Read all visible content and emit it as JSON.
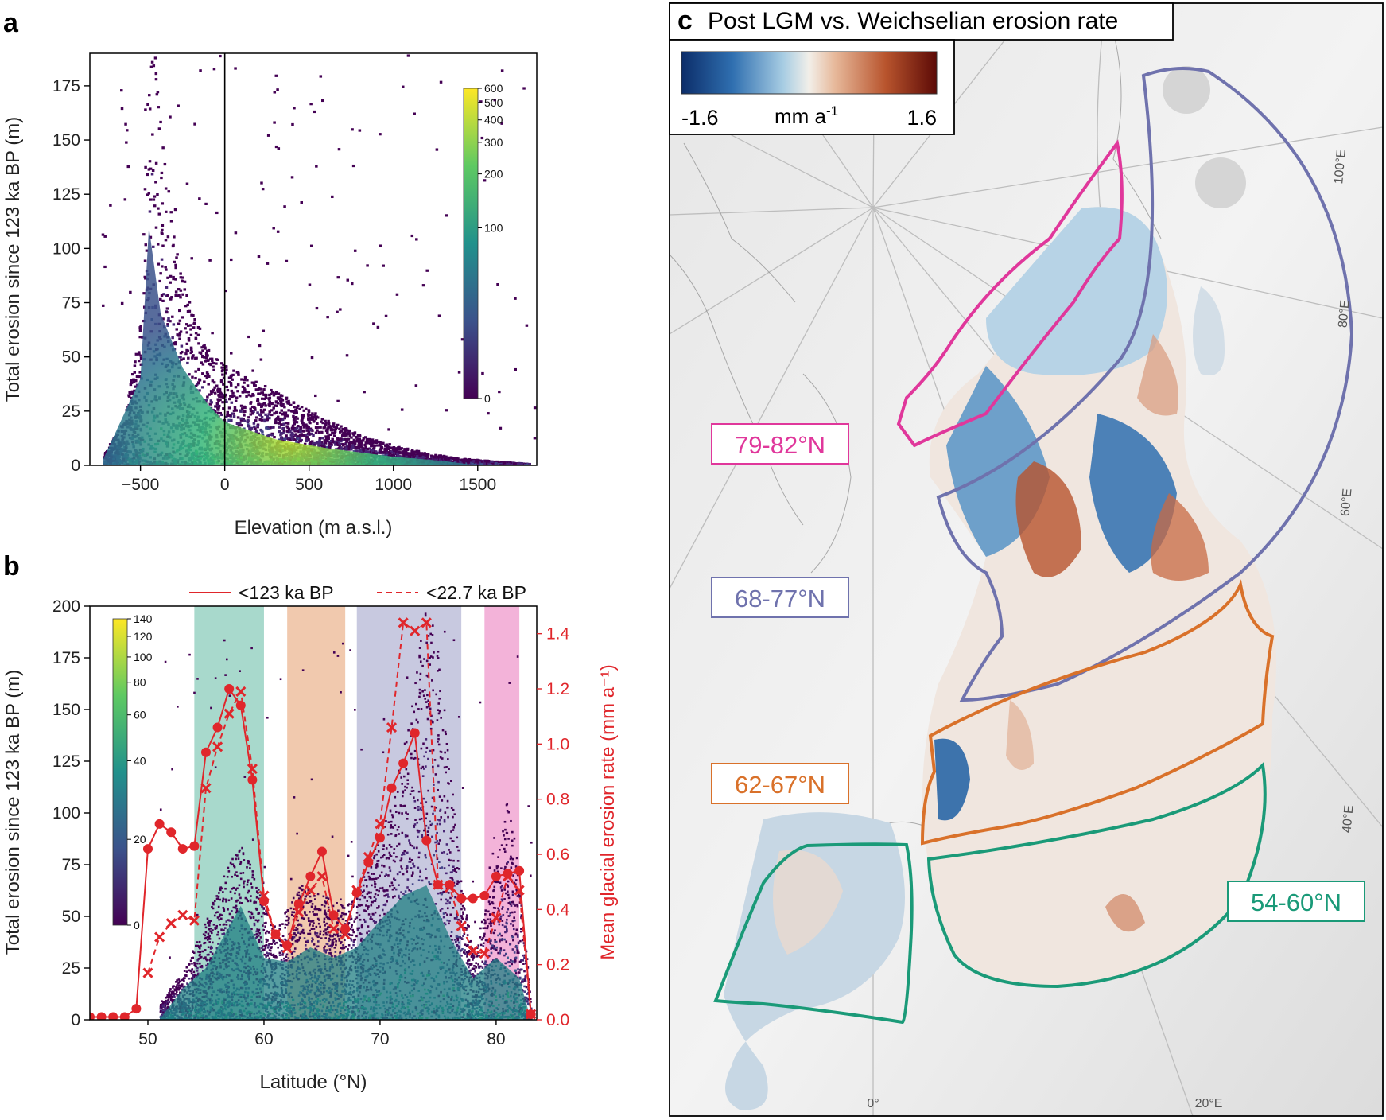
{
  "panel_a": {
    "letter": "a",
    "chart_data": {
      "type": "heatmap",
      "title": "",
      "xlabel": "Elevation (m a.s.l.)",
      "ylabel": "Total erosion since 123 ka BP (m)",
      "xlim": [
        -800,
        1850
      ],
      "ylim": [
        0,
        190
      ],
      "xticks": [
        -500,
        0,
        500,
        1000,
        1500
      ],
      "xtick_labels": [
        "−500",
        "0",
        "500",
        "1000",
        "1500"
      ],
      "yticks": [
        0,
        25,
        50,
        75,
        100,
        125,
        150,
        175
      ],
      "vline_x": 0,
      "colorbar": {
        "ticks": [
          0,
          100,
          200,
          300,
          400,
          500,
          600
        ],
        "labels": [
          "0",
          "100",
          "200",
          "300",
          "400",
          "500",
          "600"
        ],
        "scale": "symlog"
      },
      "density_ridge": [
        {
          "x": -720,
          "y": 5
        },
        {
          "x": -600,
          "y": 18
        },
        {
          "x": -500,
          "y": 60
        },
        {
          "x": -450,
          "y": 185
        },
        {
          "x": -400,
          "y": 140
        },
        {
          "x": -300,
          "y": 85
        },
        {
          "x": -200,
          "y": 60
        },
        {
          "x": -100,
          "y": 45
        },
        {
          "x": 0,
          "y": 40
        },
        {
          "x": 200,
          "y": 32
        },
        {
          "x": 400,
          "y": 25
        },
        {
          "x": 600,
          "y": 18
        },
        {
          "x": 800,
          "y": 12
        },
        {
          "x": 1000,
          "y": 8
        },
        {
          "x": 1200,
          "y": 5
        },
        {
          "x": 1400,
          "y": 3
        },
        {
          "x": 1600,
          "y": 2
        },
        {
          "x": 1800,
          "y": 1
        }
      ]
    }
  },
  "panel_b": {
    "letter": "b",
    "legend": {
      "solid": "<123 ka BP",
      "dashed": "<22.7 ka BP"
    },
    "chart_data": {
      "type": "line",
      "xlabel": "Latitude   (°N)",
      "ylabel": "Total erosion since 123 ka BP (m)",
      "y2label": "Mean glacial erosion rate (mm a⁻¹)",
      "xlim": [
        45,
        83.5
      ],
      "ylim": [
        0,
        200
      ],
      "y2lim": [
        0,
        1.5
      ],
      "xticks": [
        50,
        60,
        70,
        80
      ],
      "yticks": [
        0,
        25,
        50,
        75,
        100,
        125,
        150,
        175,
        200
      ],
      "y2ticks": [
        0.0,
        0.2,
        0.4,
        0.6,
        0.8,
        1.0,
        1.2,
        1.4
      ],
      "y2tick_labels": [
        "0.0",
        "0.2",
        "0.4",
        "0.6",
        "0.8",
        "1.0",
        "1.2",
        "1.4"
      ],
      "colorbar": {
        "ticks": [
          0,
          20,
          40,
          60,
          80,
          100,
          120,
          140
        ],
        "labels": [
          "0",
          "20",
          "40",
          "60",
          "80",
          "100",
          "120",
          "140"
        ],
        "scale": "symlog"
      },
      "bands": [
        {
          "x0": 54,
          "x1": 60,
          "color": "#1a9a78",
          "label": "54-60°N"
        },
        {
          "x0": 62,
          "x1": 67,
          "color": "#d9712a",
          "label": "62-67°N"
        },
        {
          "x0": 68,
          "x1": 77,
          "color": "#6f72ad",
          "label": "68-77°N"
        },
        {
          "x0": 79,
          "x1": 82,
          "color": "#e0379b",
          "label": "79-82°N"
        }
      ],
      "x": [
        45,
        46,
        47,
        48,
        49,
        50,
        51,
        52,
        53,
        54,
        55,
        56,
        57,
        58,
        59,
        60,
        61,
        62,
        63,
        64,
        65,
        66,
        67,
        68,
        69,
        70,
        71,
        72,
        73,
        74,
        75,
        76,
        77,
        78,
        79,
        80,
        81,
        82,
        83
      ],
      "series": [
        {
          "name": "<123 ka BP",
          "style": "solid",
          "marker": "circle",
          "values": [
            0.01,
            0.01,
            0.01,
            0.01,
            0.04,
            0.62,
            0.71,
            0.68,
            0.62,
            0.63,
            0.97,
            1.06,
            1.2,
            1.14,
            0.87,
            0.43,
            0.31,
            0.27,
            0.42,
            0.52,
            0.61,
            0.38,
            0.33,
            0.46,
            0.57,
            0.66,
            0.84,
            0.93,
            1.04,
            0.65,
            0.49,
            0.49,
            0.44,
            0.44,
            0.45,
            0.52,
            0.53,
            0.54,
            0.02
          ]
        },
        {
          "name": "<22.7 ka BP",
          "style": "dashed",
          "marker": "x",
          "values": [
            null,
            null,
            null,
            null,
            null,
            0.17,
            0.3,
            0.35,
            0.38,
            0.36,
            0.84,
            0.99,
            1.11,
            1.19,
            0.91,
            0.45,
            0.31,
            0.26,
            0.39,
            0.47,
            0.52,
            0.33,
            0.31,
            0.47,
            0.59,
            0.71,
            1.06,
            1.44,
            1.41,
            1.44,
            0.49,
            0.48,
            0.34,
            0.25,
            0.24,
            0.37,
            0.52,
            0.47,
            0.02
          ]
        }
      ],
      "density_envelope": [
        {
          "x": 51,
          "y": 8
        },
        {
          "x": 53,
          "y": 22
        },
        {
          "x": 55,
          "y": 45
        },
        {
          "x": 57,
          "y": 70
        },
        {
          "x": 58,
          "y": 80
        },
        {
          "x": 60,
          "y": 50
        },
        {
          "x": 61,
          "y": 40
        },
        {
          "x": 63,
          "y": 60
        },
        {
          "x": 65,
          "y": 55
        },
        {
          "x": 67,
          "y": 50
        },
        {
          "x": 69,
          "y": 70
        },
        {
          "x": 71,
          "y": 95
        },
        {
          "x": 73,
          "y": 150
        },
        {
          "x": 74,
          "y": 190
        },
        {
          "x": 75,
          "y": 160
        },
        {
          "x": 76,
          "y": 110
        },
        {
          "x": 77,
          "y": 60
        },
        {
          "x": 78,
          "y": 30
        },
        {
          "x": 79,
          "y": 50
        },
        {
          "x": 81,
          "y": 100
        },
        {
          "x": 82,
          "y": 60
        },
        {
          "x": 83,
          "y": 5
        }
      ]
    }
  },
  "panel_c": {
    "letter": "c",
    "title": "Post LGM vs. Weichselian erosion rate",
    "colorbar": {
      "min_label": "-1.6",
      "unit_label": "mm a",
      "unit_exp": "-1",
      "max_label": "1.6"
    },
    "colors": {
      "blue_end": "#0c2d69",
      "mid": "#f2efe9",
      "red_end": "#5c0a06"
    },
    "regions": [
      {
        "label": "79-82°N",
        "color": "#e0379b"
      },
      {
        "label": "68-77°N",
        "color": "#6f72ad"
      },
      {
        "label": "62-67°N",
        "color": "#d9712a"
      },
      {
        "label": "54-60°N",
        "color": "#1a9a78"
      }
    ],
    "longitude_labels": [
      "100°E",
      "80°E",
      "60°E",
      "40°E",
      "20°E",
      "0°"
    ]
  }
}
